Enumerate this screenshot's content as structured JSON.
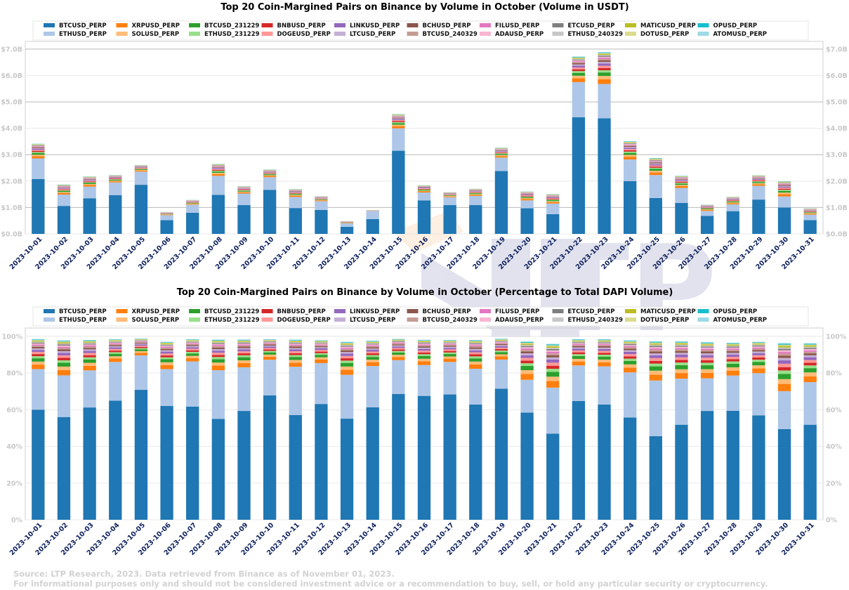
{
  "chart_data": [
    {
      "type": "bar",
      "stacked": true,
      "title": "Top 20 Coin-Margined Pairs on Binance by Volume in October (Volume in USDT)",
      "xlabel": "",
      "ylabel": "",
      "ylim": [
        0,
        7.0
      ],
      "y_unit": "USD billions",
      "yticks": [
        "$0.0B",
        "$1.0B",
        "$2.0B",
        "$3.0B",
        "$4.0B",
        "$5.0B",
        "$6.0B",
        "$7.0B"
      ],
      "grid": true,
      "legend_position": "top-center",
      "categories": [
        "2023-10-01",
        "2023-10-02",
        "2023-10-03",
        "2023-10-04",
        "2023-10-05",
        "2023-10-06",
        "2023-10-07",
        "2023-10-08",
        "2023-10-09",
        "2023-10-10",
        "2023-10-11",
        "2023-10-12",
        "2023-10-13",
        "2023-10-14",
        "2023-10-15",
        "2023-10-16",
        "2023-10-17",
        "2023-10-18",
        "2023-10-19",
        "2023-10-20",
        "2023-10-21",
        "2023-10-22",
        "2023-10-23",
        "2023-10-24",
        "2023-10-25",
        "2023-10-26",
        "2023-10-27",
        "2023-10-28",
        "2023-10-29",
        "2023-10-30",
        "2023-10-31"
      ],
      "totals": [
        3.42,
        1.87,
        2.18,
        2.23,
        2.61,
        0.83,
        1.29,
        2.65,
        1.81,
        2.44,
        1.7,
        1.43,
        0.48,
        0.9,
        4.54,
        1.84,
        1.58,
        1.71,
        3.27,
        1.61,
        1.51,
        6.72,
        6.89,
        3.51,
        2.87,
        2.2,
        1.11,
        1.41,
        2.22,
        2.0,
        0.97
      ],
      "btcusd_perp": [
        2.08,
        1.06,
        1.35,
        1.47,
        1.86,
        0.52,
        0.8,
        1.48,
        1.09,
        1.67,
        0.98,
        0.91,
        0.27,
        0.56,
        3.15,
        1.27,
        1.09,
        1.09,
        2.38,
        0.97,
        0.75,
        4.42,
        4.38,
        2.0,
        1.36,
        1.17,
        0.68,
        0.86,
        1.3,
        1.0,
        0.52
      ],
      "ethusd_perp": [
        0.78,
        0.43,
        0.44,
        0.48,
        0.5,
        0.19,
        0.31,
        0.72,
        0.44,
        0.48,
        0.42,
        0.33,
        0.13,
        0.31,
        0.85,
        0.3,
        0.3,
        0.35,
        0.51,
        0.3,
        0.4,
        1.33,
        1.3,
        0.82,
        0.87,
        0.57,
        0.19,
        0.26,
        0.52,
        0.42,
        0.21
      ]
    },
    {
      "type": "bar",
      "stacked": true,
      "title": "Top 20 Coin-Margined Pairs on Binance by Volume in October (Percentage to Total DAPI Volume)",
      "xlabel": "",
      "ylabel": "",
      "ylim": [
        0,
        100
      ],
      "y_unit": "percent",
      "yticks": [
        "0%",
        "20%",
        "40%",
        "60%",
        "80%",
        "100%"
      ],
      "grid": true,
      "legend_position": "top-center",
      "categories": [
        "2023-10-01",
        "2023-10-02",
        "2023-10-03",
        "2023-10-04",
        "2023-10-05",
        "2023-10-06",
        "2023-10-07",
        "2023-10-08",
        "2023-10-09",
        "2023-10-10",
        "2023-10-11",
        "2023-10-12",
        "2023-10-13",
        "2023-10-14",
        "2023-10-15",
        "2023-10-16",
        "2023-10-17",
        "2023-10-18",
        "2023-10-19",
        "2023-10-20",
        "2023-10-21",
        "2023-10-22",
        "2023-10-23",
        "2023-10-24",
        "2023-10-25",
        "2023-10-26",
        "2023-10-27",
        "2023-10-28",
        "2023-10-29",
        "2023-10-30",
        "2023-10-31"
      ],
      "top20_share_of_total_pct": [
        98.5,
        97.8,
        98.0,
        98.4,
        98.8,
        97.0,
        98.4,
        98.2,
        98.3,
        98.4,
        98.2,
        97.9,
        97.0,
        97.6,
        98.6,
        98.1,
        98.0,
        98.0,
        98.7,
        97.2,
        95.9,
        98.4,
        98.4,
        97.8,
        97.3,
        97.3,
        96.8,
        96.5,
        97.0,
        96.3,
        96.2
      ],
      "btcusd_perp_pct": [
        60.0,
        56.0,
        61.2,
        64.9,
        70.8,
        62.0,
        61.7,
        55.0,
        59.3,
        67.8,
        57.1,
        63.1,
        55.1,
        61.3,
        68.6,
        67.5,
        68.3,
        62.8,
        71.4,
        58.4,
        46.9,
        64.7,
        62.8,
        55.7,
        45.6,
        51.8,
        59.3,
        59.4,
        56.9,
        49.4,
        51.8
      ],
      "ethusd_perp_pct": [
        22.1,
        22.7,
        20.2,
        21.1,
        18.8,
        20.1,
        24.6,
        26.5,
        23.8,
        19.4,
        26.3,
        22.3,
        23.9,
        22.5,
        18.4,
        16.8,
        17.7,
        19.5,
        15.9,
        17.9,
        25.1,
        19.4,
        20.8,
        24.6,
        30.3,
        25.1,
        17.8,
        19.2,
        23.0,
        20.7,
        23.2
      ]
    }
  ],
  "series": [
    {
      "name": "BTCUSD_PERP",
      "color": "#1f77b4",
      "frac": null
    },
    {
      "name": "ETHUSD_PERP",
      "color": "#aec7e8",
      "frac": null
    },
    {
      "name": "XRPUSD_PERP",
      "color": "#ff7f0e",
      "frac": 0.15
    },
    {
      "name": "SOLUSD_PERP",
      "color": "#ffbb78",
      "frac": 0.1
    },
    {
      "name": "BTCUSD_231229",
      "color": "#2ca02c",
      "frac": 0.11
    },
    {
      "name": "ETHUSD_231229",
      "color": "#98df8a",
      "frac": 0.07
    },
    {
      "name": "BNBUSD_PERP",
      "color": "#d62728",
      "frac": 0.07
    },
    {
      "name": "DOGEUSD_PERP",
      "color": "#ff9896",
      "frac": 0.07
    },
    {
      "name": "LINKUSD_PERP",
      "color": "#9467bd",
      "frac": 0.07
    },
    {
      "name": "LTCUSD_PERP",
      "color": "#c5b0d5",
      "frac": 0.05
    },
    {
      "name": "BCHUSD_PERP",
      "color": "#8c564b",
      "frac": 0.05
    },
    {
      "name": "BTCUSD_240329",
      "color": "#c49c94",
      "frac": 0.04
    },
    {
      "name": "FILUSD_PERP",
      "color": "#e377c2",
      "frac": 0.035
    },
    {
      "name": "ADAUSD_PERP",
      "color": "#f7b6d2",
      "frac": 0.035
    },
    {
      "name": "ETCUSD_PERP",
      "color": "#7f7f7f",
      "frac": 0.03
    },
    {
      "name": "ETHUSD_240329",
      "color": "#c7c7c7",
      "frac": 0.03
    },
    {
      "name": "MATICUSD_PERP",
      "color": "#bcbd22",
      "frac": 0.03
    },
    {
      "name": "DOTUSD_PERP",
      "color": "#dbdb8d",
      "frac": 0.025
    },
    {
      "name": "OPUSD_PERP",
      "color": "#17becf",
      "frac": 0.02
    },
    {
      "name": "ATOMUSD_PERP",
      "color": "#9edae5",
      "frac": 0.015
    }
  ],
  "footer": {
    "source": "Source: LTP Research, 2023. Data retrieved from Binance as of November 01, 2023.",
    "disclaimer": "For informational purposes only and should not be considered investment advice or a recommendation to buy, sell, or hold any particular security or cryptocurrency."
  },
  "watermark": "LTP"
}
